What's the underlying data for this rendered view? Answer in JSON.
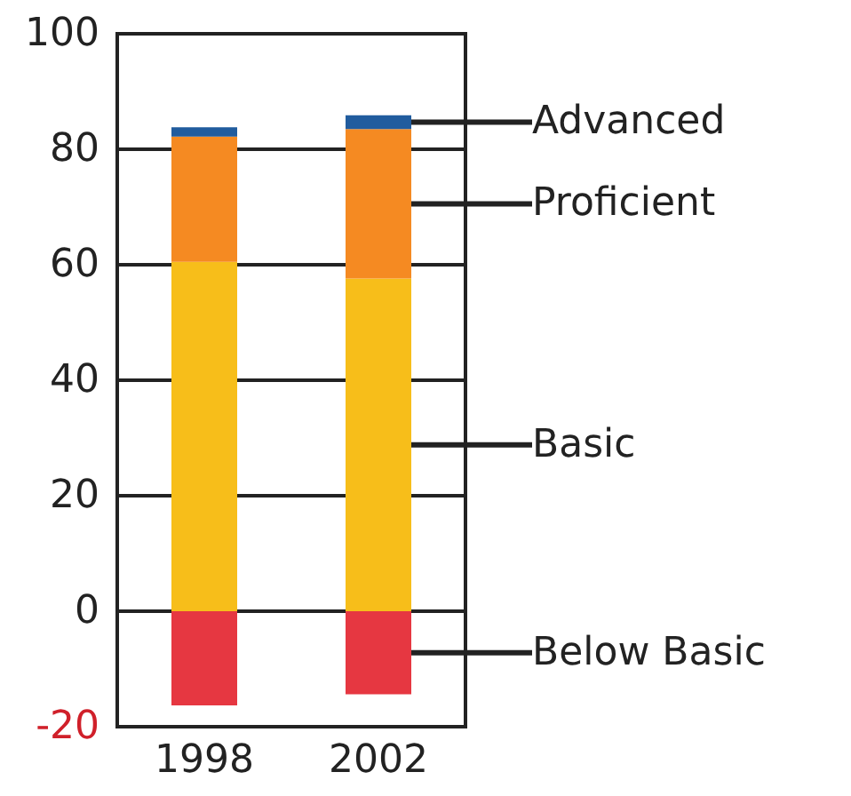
{
  "chart_data": {
    "type": "bar",
    "stacked": true,
    "categories": [
      "1998",
      "2002"
    ],
    "series": [
      {
        "name": "Below Basic",
        "color": "#e63741",
        "values": [
          -16.3,
          -14.4
        ]
      },
      {
        "name": "Basic",
        "color": "#f7be1a",
        "values": [
          60.5,
          57.6
        ]
      },
      {
        "name": "Proficient",
        "color": "#f58a22",
        "values": [
          21.7,
          25.9
        ]
      },
      {
        "name": "Advanced",
        "color": "#215c9e",
        "values": [
          1.6,
          2.4
        ]
      }
    ],
    "ylim": [
      -20,
      100
    ],
    "yticks": [
      -20,
      0,
      20,
      40,
      60,
      80,
      100
    ],
    "grid": "y",
    "legend": false
  }
}
